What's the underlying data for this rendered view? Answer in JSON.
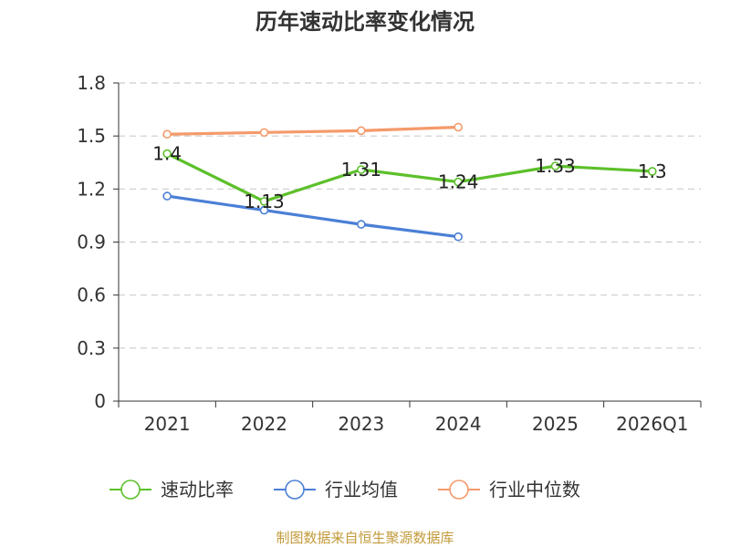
{
  "chart_data": {
    "type": "line",
    "title": "历年速动比率变化情况",
    "categories": [
      "2021",
      "2022",
      "2023",
      "2024",
      "2025",
      "2026Q1"
    ],
    "y_ticks": [
      "0",
      "0.3",
      "0.6",
      "0.9",
      "1.2",
      "1.5",
      "1.8"
    ],
    "ylim": [
      0,
      1.8
    ],
    "grid": true,
    "legend_position": "bottom",
    "series": [
      {
        "name": "速动比率",
        "color": "#5cc02a",
        "values": [
          1.4,
          1.13,
          1.31,
          1.24,
          1.33,
          1.3
        ],
        "labels": [
          "1.4",
          "1.13",
          "1.31",
          "1.24",
          "1.33",
          "1.3"
        ]
      },
      {
        "name": "行业均值",
        "color": "#4a7fd6",
        "values": [
          1.16,
          1.08,
          1.0,
          0.93,
          null,
          null
        ]
      },
      {
        "name": "行业中位数",
        "color": "#f59a6a",
        "values": [
          1.51,
          1.52,
          1.53,
          1.55,
          null,
          null
        ]
      }
    ],
    "source": "制图数据来自恒生聚源数据库"
  }
}
